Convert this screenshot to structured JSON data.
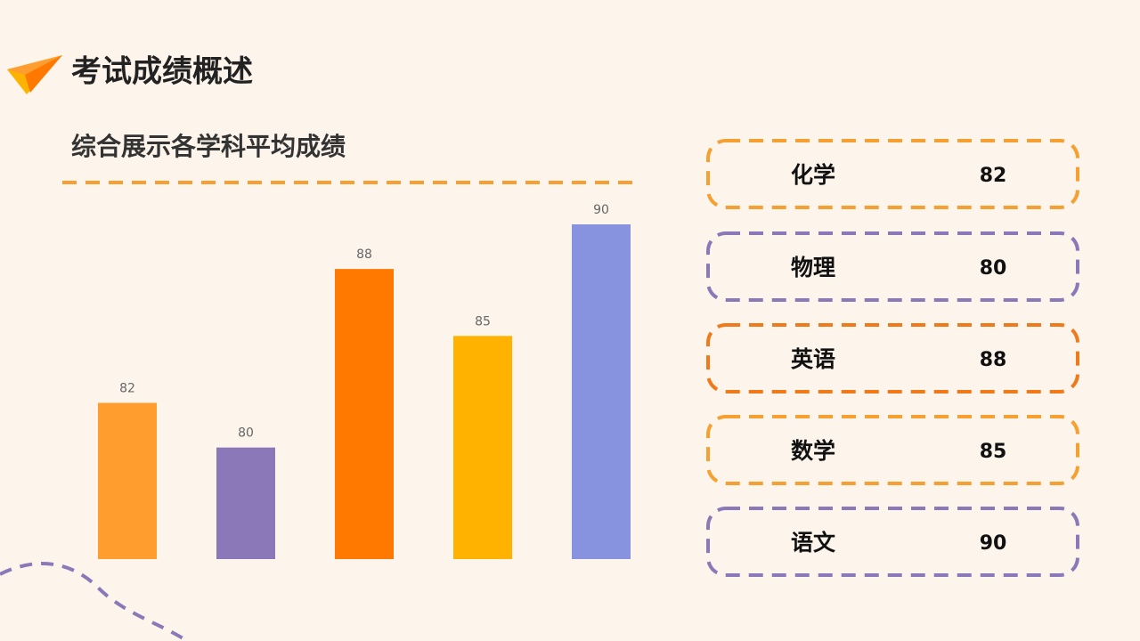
{
  "header": {
    "title": "考试成绩概述",
    "subtitle": "综合展示各学科平均成绩"
  },
  "chart_data": {
    "type": "bar",
    "categories": [
      "化学",
      "物理",
      "英语",
      "数学",
      "语文"
    ],
    "values": [
      82,
      80,
      88,
      85,
      90
    ],
    "colors": [
      "#ff9d2e",
      "#8b78b8",
      "#ff7800",
      "#ffb300",
      "#8893e0"
    ],
    "ylim": [
      75,
      90
    ]
  }
}
